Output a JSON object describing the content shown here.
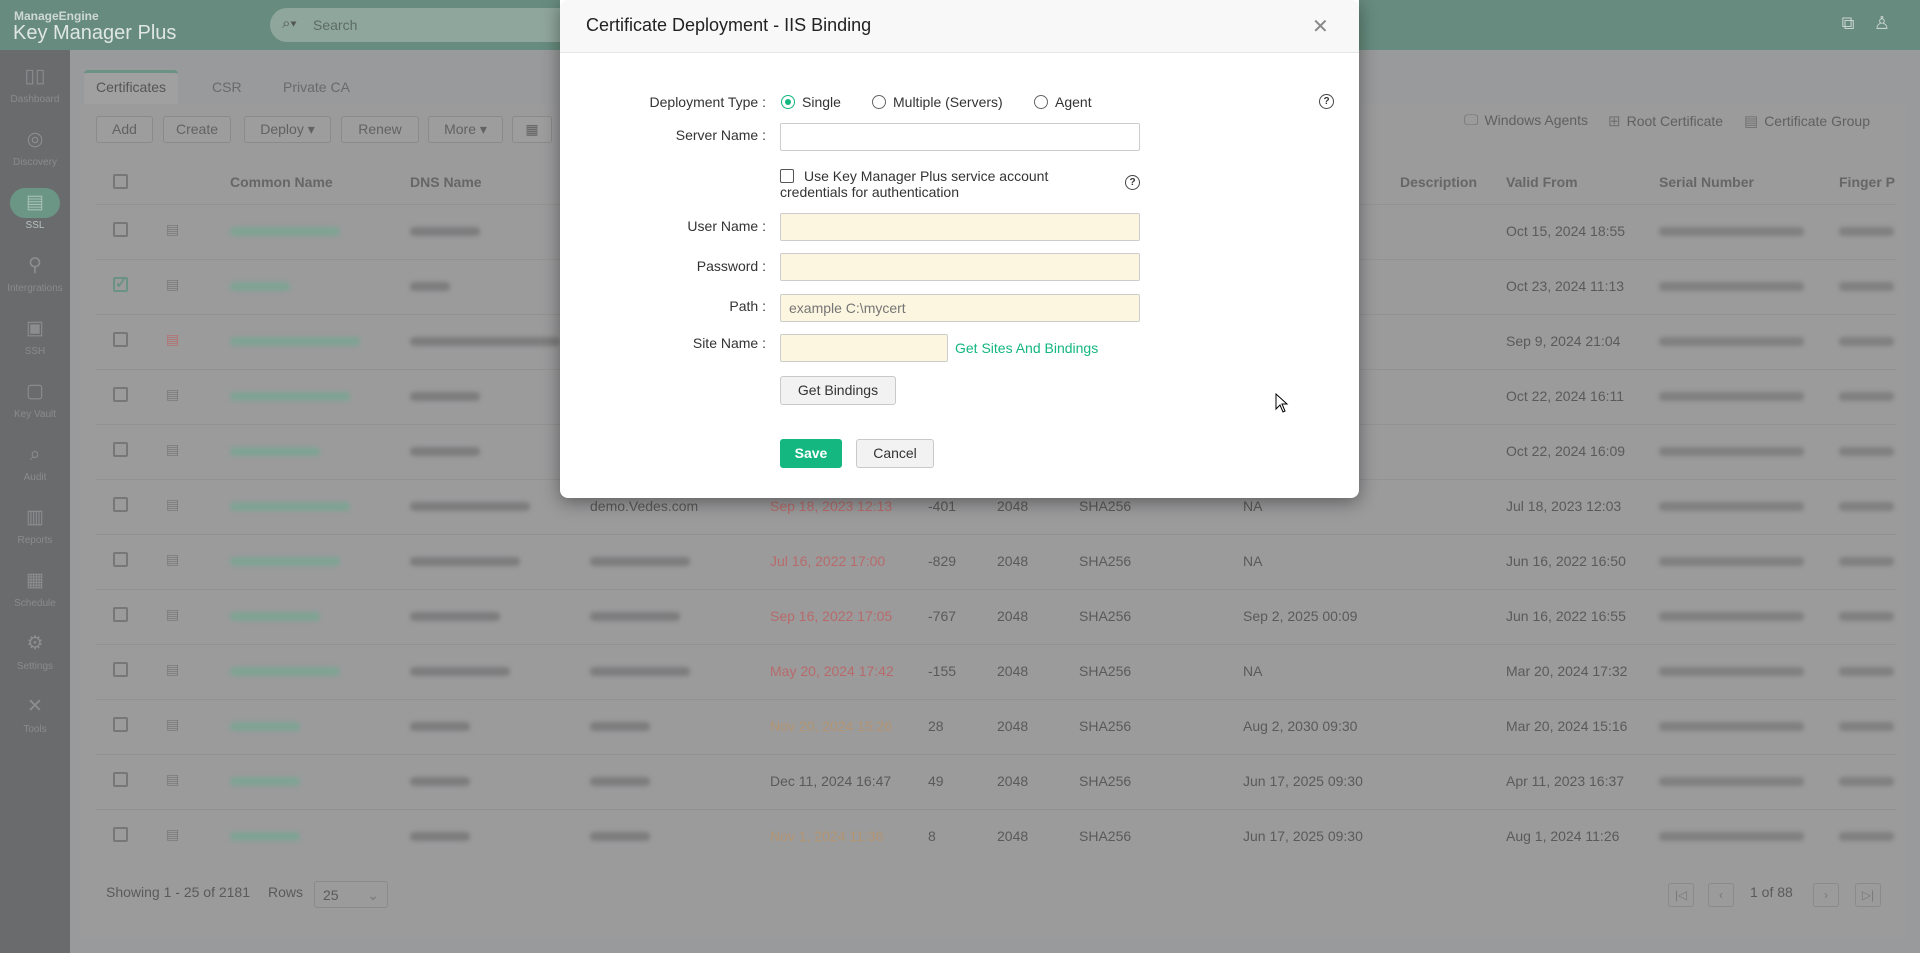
{
  "header": {
    "brand": "ManageEngine",
    "product": "Key Manager Plus",
    "search_placeholder": "Search",
    "icons": [
      "chat-support-icon",
      "user-icon"
    ]
  },
  "sidebar": [
    {
      "label": "Dashboard",
      "icon": "▯▯"
    },
    {
      "label": "Discovery",
      "icon": "◎"
    },
    {
      "label": "SSL",
      "icon": "▤",
      "active": true
    },
    {
      "label": "Intergrations",
      "icon": "⚲"
    },
    {
      "label": "SSH",
      "icon": "▣"
    },
    {
      "label": "Key Vault",
      "icon": "▢"
    },
    {
      "label": "Audit",
      "icon": "⌕"
    },
    {
      "label": "Reports",
      "icon": "▥"
    },
    {
      "label": "Schedule",
      "icon": "▦"
    },
    {
      "label": "Settings",
      "icon": "⚙"
    },
    {
      "label": "Tools",
      "icon": "✕"
    }
  ],
  "tabs": [
    {
      "label": "Certificates",
      "active": true
    },
    {
      "label": "CSR"
    },
    {
      "label": "Private CA"
    }
  ],
  "toolbar": {
    "add": "Add",
    "create": "Create",
    "deploy": "Deploy ▾",
    "renew": "Renew",
    "more": "More ▾",
    "windows_agents": "Windows Agents",
    "root_certificate": "Root Certificate",
    "certificate_group": "Certificate Group"
  },
  "table": {
    "headers": {
      "common_name": "Common Name",
      "dns_name": "DNS Name",
      "description": "Description",
      "valid_from": "Valid From",
      "serial_number": "Serial Number",
      "finger_print": "Finger P"
    },
    "rows": [
      {
        "checked": false,
        "icon_status": "ok",
        "expiry": "",
        "expiry_color": "",
        "days": "",
        "key": "",
        "algo": "",
        "col10": "",
        "valid_from": "Oct 15, 2024 18:55"
      },
      {
        "checked": true,
        "icon_status": "ok",
        "expiry": "",
        "expiry_color": "",
        "days": "",
        "key": "",
        "algo": "",
        "col10": "",
        "valid_from": "Oct 23, 2024 11:13"
      },
      {
        "checked": false,
        "icon_status": "error",
        "expiry": "",
        "expiry_color": "",
        "days": "",
        "key": "",
        "algo": "",
        "col10": "",
        "valid_from": "Sep 9, 2024 21:04"
      },
      {
        "checked": false,
        "icon_status": "ok",
        "expiry": "",
        "expiry_color": "",
        "days": "",
        "key": "",
        "algo": "",
        "col10": "",
        "valid_from": "Oct 22, 2024 16:11"
      },
      {
        "checked": false,
        "icon_status": "ok",
        "expiry": "",
        "expiry_color": "",
        "days": "",
        "key": "",
        "algo": "",
        "col10": "",
        "valid_from": "Oct 22, 2024 16:09"
      },
      {
        "checked": false,
        "icon_status": "ok",
        "san": "demo.Vedes.com",
        "expiry": "Sep 18, 2023 12:13",
        "expiry_color": "#b86a6a",
        "days": "-401",
        "key": "2048",
        "algo": "SHA256",
        "col10": "NA",
        "valid_from": "Jul 18, 2023 12:03"
      },
      {
        "checked": false,
        "icon_status": "ok",
        "expiry": "Jul 16, 2022 17:00",
        "expiry_color": "#b86a6a",
        "days": "-829",
        "key": "2048",
        "algo": "SHA256",
        "col10": "NA",
        "valid_from": "Jun 16, 2022 16:50"
      },
      {
        "checked": false,
        "icon_status": "ok",
        "expiry": "Sep 16, 2022 17:05",
        "expiry_color": "#b86a6a",
        "days": "-767",
        "key": "2048",
        "algo": "SHA256",
        "col10": "Sep 2, 2025 00:09",
        "valid_from": "Jun 16, 2022 16:55"
      },
      {
        "checked": false,
        "icon_status": "ok",
        "expiry": "May 20, 2024 17:42",
        "expiry_color": "#b86a6a",
        "days": "-155",
        "key": "2048",
        "algo": "SHA256",
        "col10": "NA",
        "valid_from": "Mar 20, 2024 17:32"
      },
      {
        "checked": false,
        "icon_status": "ok",
        "expiry": "Nov 20, 2024 15:26",
        "expiry_color": "#b39471",
        "days": "28",
        "key": "2048",
        "algo": "SHA256",
        "col10": "Aug 2, 2030 09:30",
        "valid_from": "Mar 20, 2024 15:16"
      },
      {
        "checked": false,
        "icon_status": "ok",
        "expiry": "Dec 11, 2024 16:47",
        "expiry_color": "#5a5a5a",
        "days": "49",
        "key": "2048",
        "algo": "SHA256",
        "col10": "Jun 17, 2025 09:30",
        "valid_from": "Apr 11, 2023 16:37"
      },
      {
        "checked": false,
        "icon_status": "ok",
        "expiry": "Nov 1, 2024 11:36",
        "expiry_color": "#b39471",
        "days": "8",
        "key": "2048",
        "algo": "SHA256",
        "col10": "Jun 17, 2025 09:30",
        "valid_from": "Aug 1, 2024 11:26"
      }
    ]
  },
  "footer": {
    "showing": "Showing 1 - 25 of 2181",
    "rows_label": "Rows",
    "rows_value": "25",
    "page": "1 of 88"
  },
  "modal": {
    "title": "Certificate Deployment - IIS Binding",
    "deployment_type_label": "Deployment Type :",
    "options": [
      "Single",
      "Multiple (Servers)",
      "Agent"
    ],
    "selected": "Single",
    "server_name_label": "Server Name :",
    "server_name_value": "",
    "service_account_label": "Use Key Manager Plus service account credentials for authentication",
    "service_account_checked": false,
    "user_name_label": "User Name :",
    "password_label": "Password :",
    "path_label": "Path :",
    "path_placeholder": "example C:\\mycert",
    "site_name_label": "Site Name :",
    "get_sites_link": "Get Sites And Bindings",
    "get_bindings": "Get Bindings",
    "save": "Save",
    "cancel": "Cancel",
    "accent": "#13b77f"
  }
}
